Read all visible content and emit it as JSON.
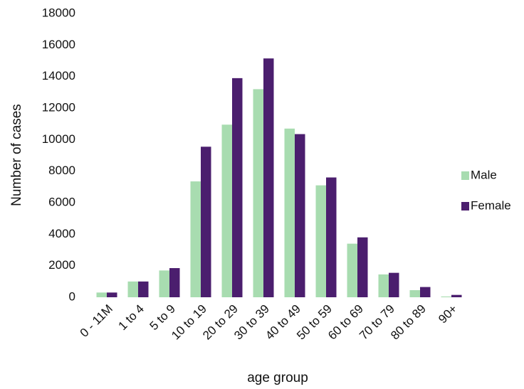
{
  "chart_data": {
    "type": "bar",
    "x_label": "age group",
    "y_label": "Number of cases",
    "categories": [
      "0 - 11M",
      "1 to 4",
      "5 to 9",
      "10 to 19",
      "20 to 29",
      "30 to 39",
      "40 to 49",
      "50 to 59",
      "60 to 69",
      "70 to 79",
      "80 to 89",
      "90+"
    ],
    "series": [
      {
        "name": "Male",
        "color": "#a8dcb0",
        "values": [
          300,
          1000,
          1700,
          7350,
          10950,
          13200,
          10700,
          7100,
          3400,
          1450,
          450,
          50
        ]
      },
      {
        "name": "Female",
        "color": "#4b1e6e",
        "values": [
          300,
          1000,
          1850,
          9550,
          13900,
          15150,
          10350,
          7600,
          3800,
          1550,
          650,
          150
        ]
      }
    ],
    "ylim": [
      0,
      18000
    ],
    "yticks": [
      0,
      2000,
      4000,
      6000,
      8000,
      10000,
      12000,
      14000,
      16000,
      18000
    ],
    "grid": false,
    "legend": "right"
  }
}
